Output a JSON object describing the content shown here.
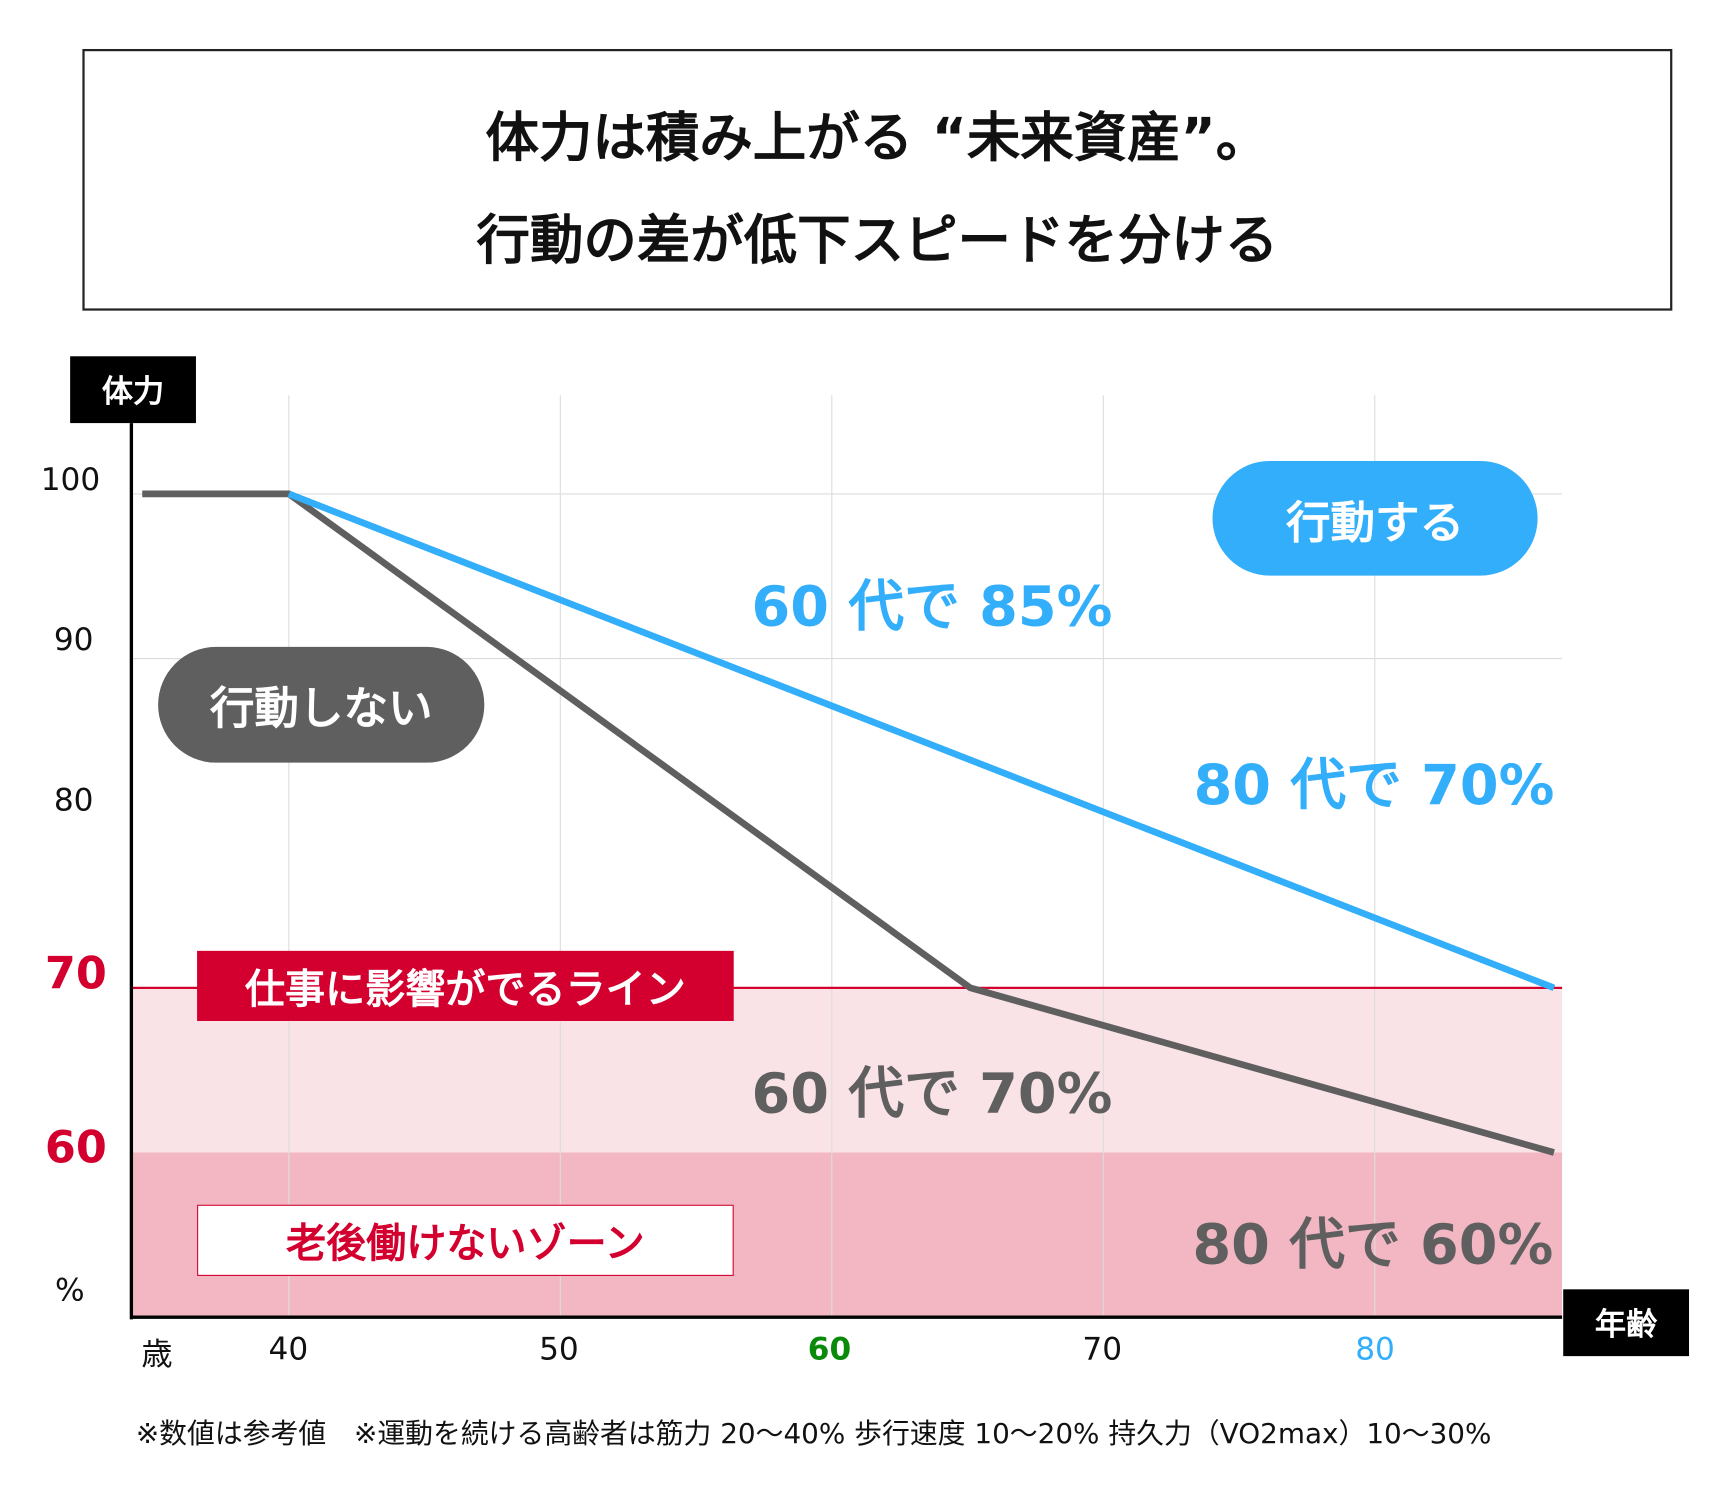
{
  "title": {
    "line1": "体力は積み上がる “未来資産”。",
    "line2": "行動の差が低下スピードを分ける"
  },
  "chart_data": {
    "type": "line",
    "ylabel": "体力",
    "xlabel": "年齢",
    "y_unit": "%",
    "x_unit": "歳",
    "xlim": [
      34.2,
      86.9
    ],
    "ylim": [
      50,
      104.3
    ],
    "x_ticks": [
      "40",
      "50",
      "60",
      "70",
      "80"
    ],
    "y_ticks": [
      "100",
      "90",
      "80",
      "70",
      "60"
    ],
    "grid": true,
    "series": [
      {
        "name": "行動しない",
        "color": "#5f5f5f",
        "points": [
          [
            34.6,
            100
          ],
          [
            40,
            100
          ],
          [
            65.1,
            70
          ],
          [
            86.6,
            60
          ]
        ]
      },
      {
        "name": "行動する",
        "color": "#33aefa",
        "points": [
          [
            40,
            100
          ],
          [
            86.6,
            70
          ]
        ]
      }
    ],
    "zones": [
      {
        "label": "仕事に影響がでるライン",
        "from": 60,
        "to": 70,
        "color": "#fae3e7",
        "line_color": "#d3002f"
      },
      {
        "label": "老後働けないゾーン",
        "from": 50,
        "to": 60,
        "color": "#f2b7c3"
      }
    ],
    "annotations": {
      "active_60s": "60 代で 85%",
      "active_80s": "80 代で 70%",
      "inactive_60s": "60 代で 70%",
      "inactive_80s": "80 代で 60%"
    },
    "tick_colors": {
      "60": "#0a8a0a",
      "80": "#33aefa",
      "red": "#d3002f"
    }
  },
  "footnote": "※数値は参考値　※運動を続ける高齢者は筋力 20〜40% 歩行速度 10〜20% 持久力（VO2max）10〜30%"
}
